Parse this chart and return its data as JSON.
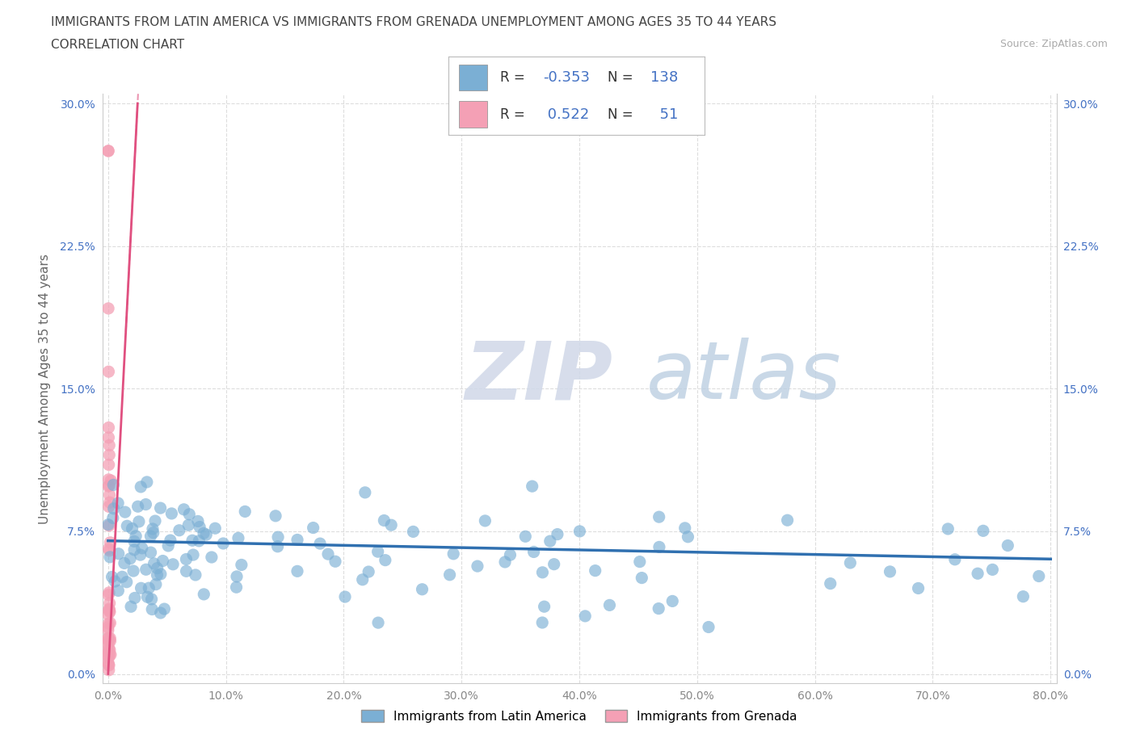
{
  "title_line1": "IMMIGRANTS FROM LATIN AMERICA VS IMMIGRANTS FROM GRENADA UNEMPLOYMENT AMONG AGES 35 TO 44 YEARS",
  "title_line2": "CORRELATION CHART",
  "source_text": "Source: ZipAtlas.com",
  "ylabel": "Unemployment Among Ages 35 to 44 years",
  "xlim": [
    -0.005,
    0.805
  ],
  "ylim": [
    -0.005,
    0.305
  ],
  "xticks": [
    0.0,
    0.1,
    0.2,
    0.3,
    0.4,
    0.5,
    0.6,
    0.7,
    0.8
  ],
  "xticklabels": [
    "0.0%",
    "10.0%",
    "20.0%",
    "30.0%",
    "40.0%",
    "50.0%",
    "60.0%",
    "70.0%",
    "80.0%"
  ],
  "yticks": [
    0.0,
    0.075,
    0.15,
    0.225,
    0.3
  ],
  "yticklabels": [
    "0.0%",
    "7.5%",
    "15.0%",
    "22.5%",
    "30.0%"
  ],
  "blue_color": "#7BAFD4",
  "pink_color": "#F4A0B5",
  "blue_line_color": "#3070B0",
  "pink_line_color": "#E05080",
  "R_blue": -0.353,
  "N_blue": 138,
  "R_pink": 0.522,
  "N_pink": 51,
  "legend_label_blue": "Immigrants from Latin America",
  "legend_label_pink": "Immigrants from Grenada",
  "watermark_zip": "ZIP",
  "watermark_atlas": "atlas",
  "background_color": "#ffffff",
  "grid_color": "#dddddd",
  "title_fontsize": 11,
  "axis_label_fontsize": 11,
  "tick_fontsize": 10,
  "stat_fontsize": 13,
  "ytick_color": "#4472C4",
  "xtick_color": "#888888",
  "right_ytick_color": "#4472C4"
}
